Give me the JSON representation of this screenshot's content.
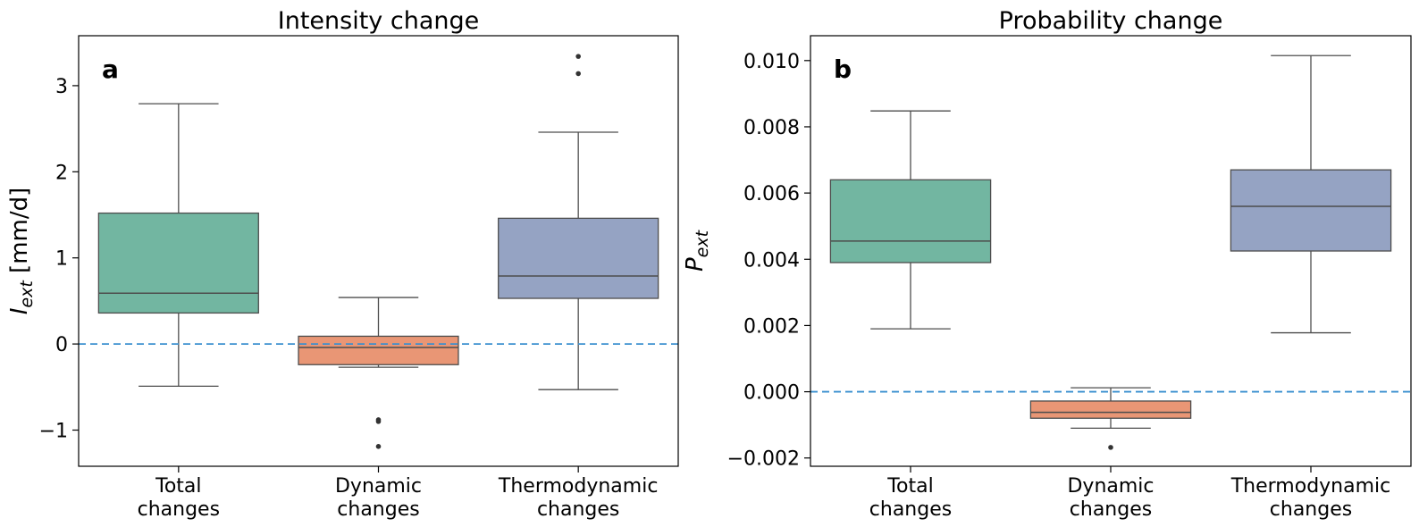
{
  "chart_data": [
    {
      "type": "box",
      "panel_label": "a",
      "title": "Intensity change",
      "ylabel_main": "I",
      "ylabel_sub": "ext",
      "ylabel_unit": " [mm/d]",
      "ylim": [
        -1.42,
        3.58
      ],
      "yticks": [
        -1,
        0,
        1,
        2,
        3
      ],
      "ytick_labels": [
        "−1",
        "0",
        "1",
        "2",
        "3"
      ],
      "reference_line": 0,
      "categories": [
        "Total\nchanges",
        "Dynamic\nchanges",
        "Thermodynamic\nchanges"
      ],
      "boxes": [
        {
          "name": "Total changes",
          "color": "#72b6a1",
          "whisker_low": -0.49,
          "q1": 0.36,
          "median": 0.59,
          "q3": 1.52,
          "whisker_high": 2.79,
          "outliers": []
        },
        {
          "name": "Dynamic changes",
          "color": "#e99675",
          "whisker_low": -0.27,
          "q1": -0.24,
          "median": -0.04,
          "q3": 0.09,
          "whisker_high": 0.54,
          "outliers": [
            -0.88,
            -0.9,
            -1.19
          ]
        },
        {
          "name": "Thermodynamic changes",
          "color": "#95a3c3",
          "whisker_low": -0.53,
          "q1": 0.53,
          "median": 0.79,
          "q3": 1.46,
          "whisker_high": 2.46,
          "outliers": [
            3.34,
            3.14
          ]
        }
      ]
    },
    {
      "type": "box",
      "panel_label": "b",
      "title": "Probability change",
      "ylabel_main": "P",
      "ylabel_sub": "ext",
      "ylabel_unit": "",
      "ylim": [
        -0.00225,
        0.01075
      ],
      "yticks": [
        -0.002,
        0.0,
        0.002,
        0.004,
        0.006,
        0.008,
        0.01
      ],
      "ytick_labels": [
        "−0.002",
        "0.000",
        "0.002",
        "0.004",
        "0.006",
        "0.008",
        "0.010"
      ],
      "reference_line": 0,
      "categories": [
        "Total\nchanges",
        "Dynamic\nchanges",
        "Thermodynamic\nchanges"
      ],
      "boxes": [
        {
          "name": "Total changes",
          "color": "#72b6a1",
          "whisker_low": 0.0019,
          "q1": 0.0039,
          "median": 0.00455,
          "q3": 0.0064,
          "whisker_high": 0.00848,
          "outliers": []
        },
        {
          "name": "Dynamic changes",
          "color": "#e99675",
          "whisker_low": -0.0011,
          "q1": -0.0008,
          "median": -0.00062,
          "q3": -0.00028,
          "whisker_high": 0.00012,
          "outliers": [
            -0.00168
          ]
        },
        {
          "name": "Thermodynamic changes",
          "color": "#95a3c3",
          "whisker_low": 0.00178,
          "q1": 0.00425,
          "median": 0.0056,
          "q3": 0.0067,
          "whisker_high": 0.01015,
          "outliers": []
        }
      ]
    }
  ]
}
